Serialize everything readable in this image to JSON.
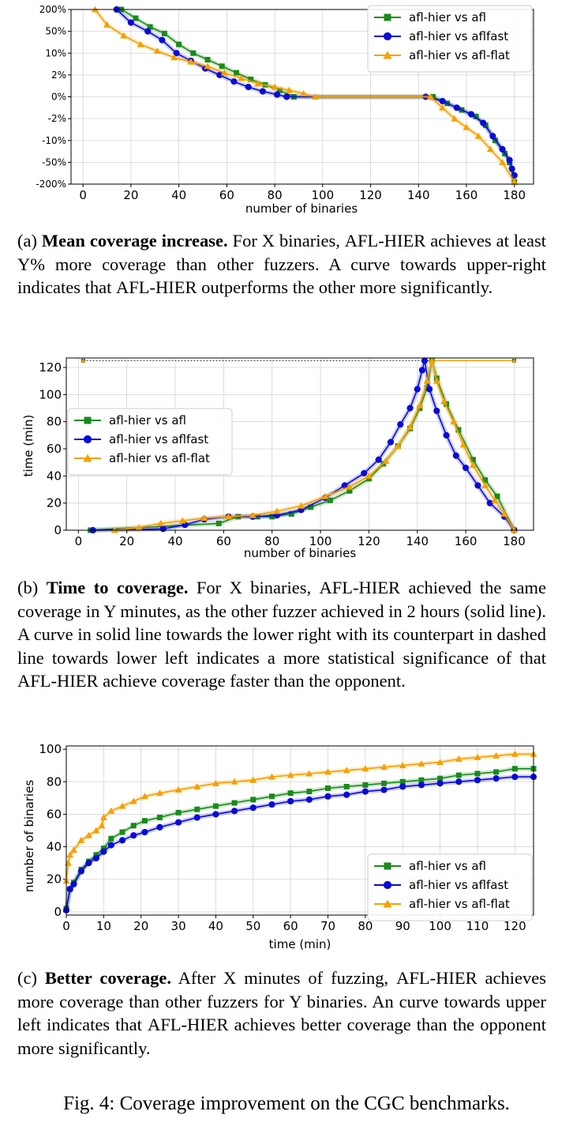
{
  "colors": {
    "afl": "#1a8a1a",
    "aflfast": "#0a0ad8",
    "aflflat": "#f5a000"
  },
  "chart_data": [
    {
      "id": "a",
      "type": "line",
      "xlabel": "number of binaries",
      "ylabel": "",
      "xlim": [
        -5,
        188
      ],
      "xticks": [
        0,
        20,
        40,
        60,
        80,
        100,
        120,
        140,
        160,
        180
      ],
      "yticks": [
        "200%",
        "50%",
        "10%",
        "2%",
        "0%",
        "-2%",
        "-10%",
        "-50%",
        "-200%"
      ],
      "ylim": [
        -4,
        4
      ],
      "legend_position": "upper right",
      "grid": true,
      "series": [
        {
          "name": "afl-hier vs afl",
          "color_key": "afl",
          "marker": "square",
          "x": [
            16,
            22,
            28,
            34,
            40,
            46,
            52,
            58,
            64,
            70,
            76,
            82,
            88,
            146,
            152,
            158,
            164,
            168,
            172,
            176,
            178,
            180
          ],
          "y": [
            4,
            3.6,
            3.2,
            2.9,
            2.4,
            2.0,
            1.7,
            1.4,
            1.1,
            0.8,
            0.55,
            0.3,
            0.0,
            0.0,
            -0.3,
            -0.6,
            -0.9,
            -1.3,
            -2.0,
            -2.6,
            -3.0,
            -3.9
          ]
        },
        {
          "name": "afl-hier vs aflfast",
          "color_key": "aflfast",
          "marker": "circle",
          "x": [
            14,
            20,
            27,
            33,
            39,
            45,
            51,
            57,
            63,
            69,
            75,
            81,
            85,
            143,
            150,
            156,
            162,
            167,
            171,
            175,
            178,
            179,
            180
          ],
          "y": [
            4,
            3.4,
            3.0,
            2.6,
            2.0,
            1.65,
            1.3,
            1.0,
            0.7,
            0.45,
            0.25,
            0.1,
            0.0,
            0.0,
            -0.2,
            -0.5,
            -0.8,
            -1.2,
            -1.8,
            -2.4,
            -2.9,
            -3.3,
            -3.6
          ]
        },
        {
          "name": "afl-hier vs afl-flat",
          "color_key": "aflflat",
          "marker": "triangle",
          "x": [
            5,
            10,
            17,
            24,
            31,
            38,
            45,
            52,
            59,
            66,
            73,
            80,
            86,
            92,
            97,
            145,
            150,
            155,
            160,
            165,
            170,
            175,
            180
          ],
          "y": [
            4,
            3.3,
            2.8,
            2.4,
            2.1,
            1.8,
            1.6,
            1.4,
            1.1,
            0.85,
            0.6,
            0.45,
            0.3,
            0.15,
            0.0,
            0.0,
            -0.5,
            -1.0,
            -1.4,
            -1.8,
            -2.4,
            -3.0,
            -3.9
          ]
        }
      ]
    },
    {
      "id": "b",
      "type": "line",
      "xlabel": "number of binaries",
      "ylabel": "time (min)",
      "xlim": [
        -5,
        188
      ],
      "ylim": [
        0,
        127
      ],
      "xticks": [
        0,
        20,
        40,
        60,
        80,
        100,
        120,
        140,
        160,
        180
      ],
      "yticks": [
        0,
        20,
        40,
        60,
        80,
        100,
        120
      ],
      "legend_position": "center left",
      "grid": true,
      "series": [
        {
          "name": "afl-hier vs afl",
          "color_key": "afl",
          "marker": "square",
          "x": [
            5,
            58,
            66,
            74,
            80,
            88,
            96,
            104,
            112,
            120,
            126,
            132,
            137,
            141,
            144,
            146,
            148,
            152,
            157,
            163,
            168,
            173,
            180
          ],
          "y": [
            0,
            5,
            10,
            10,
            10,
            12,
            17,
            22,
            29,
            38,
            49,
            62,
            75,
            90,
            105,
            125,
            112,
            93,
            74,
            52,
            37,
            25,
            0
          ]
        },
        {
          "name": "afl-hier vs aflfast",
          "color_key": "aflfast",
          "marker": "circle",
          "x": [
            6,
            35,
            44,
            52,
            62,
            72,
            82,
            92,
            102,
            110,
            118,
            124,
            129,
            133,
            137,
            140,
            142,
            143,
            145,
            148,
            152,
            156,
            160,
            165,
            170,
            176,
            180
          ],
          "y": [
            0,
            1,
            4,
            8,
            10,
            10,
            11,
            15,
            24,
            33,
            42,
            52,
            65,
            78,
            90,
            104,
            118,
            125,
            104,
            88,
            70,
            55,
            46,
            33,
            20,
            10,
            0
          ]
        },
        {
          "name": "afl-hier vs afl-flat",
          "color_key": "aflflat",
          "marker": "triangle",
          "x": [
            15,
            25,
            34,
            43,
            52,
            62,
            72,
            82,
            92,
            102,
            112,
            120,
            127,
            132,
            137,
            141,
            144,
            146,
            148,
            151,
            155,
            159,
            163,
            168,
            172,
            176,
            180
          ],
          "y": [
            0,
            2,
            5,
            7,
            9,
            10,
            11,
            14,
            18,
            25,
            32,
            40,
            51,
            62,
            76,
            92,
            110,
            125,
            110,
            95,
            80,
            63,
            48,
            33,
            22,
            12,
            0
          ]
        }
      ],
      "reference_lines": [
        {
          "style": "dashed",
          "x": [
            2,
            180
          ],
          "y": [
            125,
            125
          ]
        },
        {
          "style": "solid",
          "x": [
            146,
            180
          ],
          "y": [
            125,
            125
          ]
        }
      ]
    },
    {
      "id": "c",
      "type": "line",
      "xlabel": "time (min)",
      "ylabel": "number of binaries",
      "xlim": [
        0,
        125
      ],
      "ylim": [
        -2,
        102
      ],
      "xticks": [
        0,
        10,
        20,
        30,
        40,
        50,
        60,
        70,
        80,
        90,
        100,
        110,
        120
      ],
      "yticks": [
        0,
        20,
        40,
        60,
        80,
        100
      ],
      "legend_position": "lower right",
      "grid": true,
      "series": [
        {
          "name": "afl-hier vs afl",
          "color_key": "afl",
          "marker": "square",
          "x": [
            0,
            1,
            2,
            4,
            6,
            8,
            10,
            12,
            15,
            18,
            21,
            25,
            30,
            35,
            40,
            45,
            50,
            55,
            60,
            65,
            70,
            75,
            80,
            85,
            90,
            95,
            100,
            105,
            110,
            115,
            120,
            125
          ],
          "y": [
            2,
            14,
            18,
            26,
            31,
            35,
            39,
            45,
            49,
            53,
            56,
            58,
            61,
            63,
            65,
            67,
            69,
            71,
            73,
            74,
            76,
            77,
            78,
            79,
            80,
            81,
            82,
            84,
            85,
            86,
            88,
            88
          ]
        },
        {
          "name": "afl-hier vs aflfast",
          "color_key": "aflfast",
          "marker": "circle",
          "x": [
            0,
            1,
            2,
            4,
            6,
            8,
            10,
            12,
            15,
            18,
            21,
            25,
            30,
            35,
            40,
            45,
            50,
            55,
            60,
            65,
            70,
            75,
            80,
            85,
            90,
            95,
            100,
            105,
            110,
            115,
            120,
            125
          ],
          "y": [
            1,
            14,
            17,
            25,
            30,
            33,
            37,
            41,
            44,
            47,
            49,
            52,
            55,
            58,
            60,
            62,
            64,
            66,
            68,
            69,
            71,
            72,
            74,
            75,
            77,
            78,
            79,
            80,
            81,
            82,
            83,
            83
          ]
        },
        {
          "name": "afl-hier vs afl-flat",
          "color_key": "aflflat",
          "marker": "triangle",
          "x": [
            0,
            0.5,
            1,
            2,
            4,
            6,
            8,
            9.5,
            10,
            12,
            15,
            18,
            21,
            25,
            30,
            35,
            40,
            45,
            50,
            55,
            60,
            65,
            70,
            75,
            80,
            85,
            90,
            95,
            100,
            105,
            110,
            115,
            120,
            125
          ],
          "y": [
            19,
            30,
            35,
            38,
            44,
            47,
            50,
            53,
            58,
            62,
            65,
            68,
            71,
            73,
            75,
            77,
            79,
            80,
            81,
            83,
            84,
            85,
            86,
            87,
            88,
            89,
            90,
            91,
            92,
            94,
            95,
            96,
            97,
            97
          ]
        }
      ]
    }
  ],
  "captions": {
    "a": {
      "label": "(a)",
      "title": "Mean coverage increase.",
      "body_pre": " For X binaries, ",
      "name1": "AFL-HIER",
      "body_mid1": " achieves at least Y% more coverage than other fuzzers. A curve towards upper-right indicates that ",
      "name2": "AFL-HIER",
      "body_post": " outperforms the other more significantly."
    },
    "b": {
      "label": "(b)",
      "title": "Time to coverage.",
      "body_pre": " For X binaries, ",
      "name1": "AFL-HIER",
      "body_mid1": " achieved the same coverage in Y minutes, as the other fuzzer achieved in 2 hours (solid line). A curve in solid line towards the lower right with its counterpart in dashed line towards lower left indicates a more statistical significance of that ",
      "name2": "AFL-HIER",
      "body_post": " achieve coverage faster than the opponent."
    },
    "c": {
      "label": "(c)",
      "title": "Better coverage.",
      "body_pre": " After X minutes of fuzzing, ",
      "name1": "AFL-HIER",
      "body_mid1": " achieves more coverage than other fuzzers for Y binaries. An curve towards upper left indicates that ",
      "name2": "AFL-HIER",
      "body_post": " achieves better coverage than the opponent more significantly."
    }
  },
  "figure_caption": "Fig. 4: Coverage improvement on the CGC benchmarks."
}
